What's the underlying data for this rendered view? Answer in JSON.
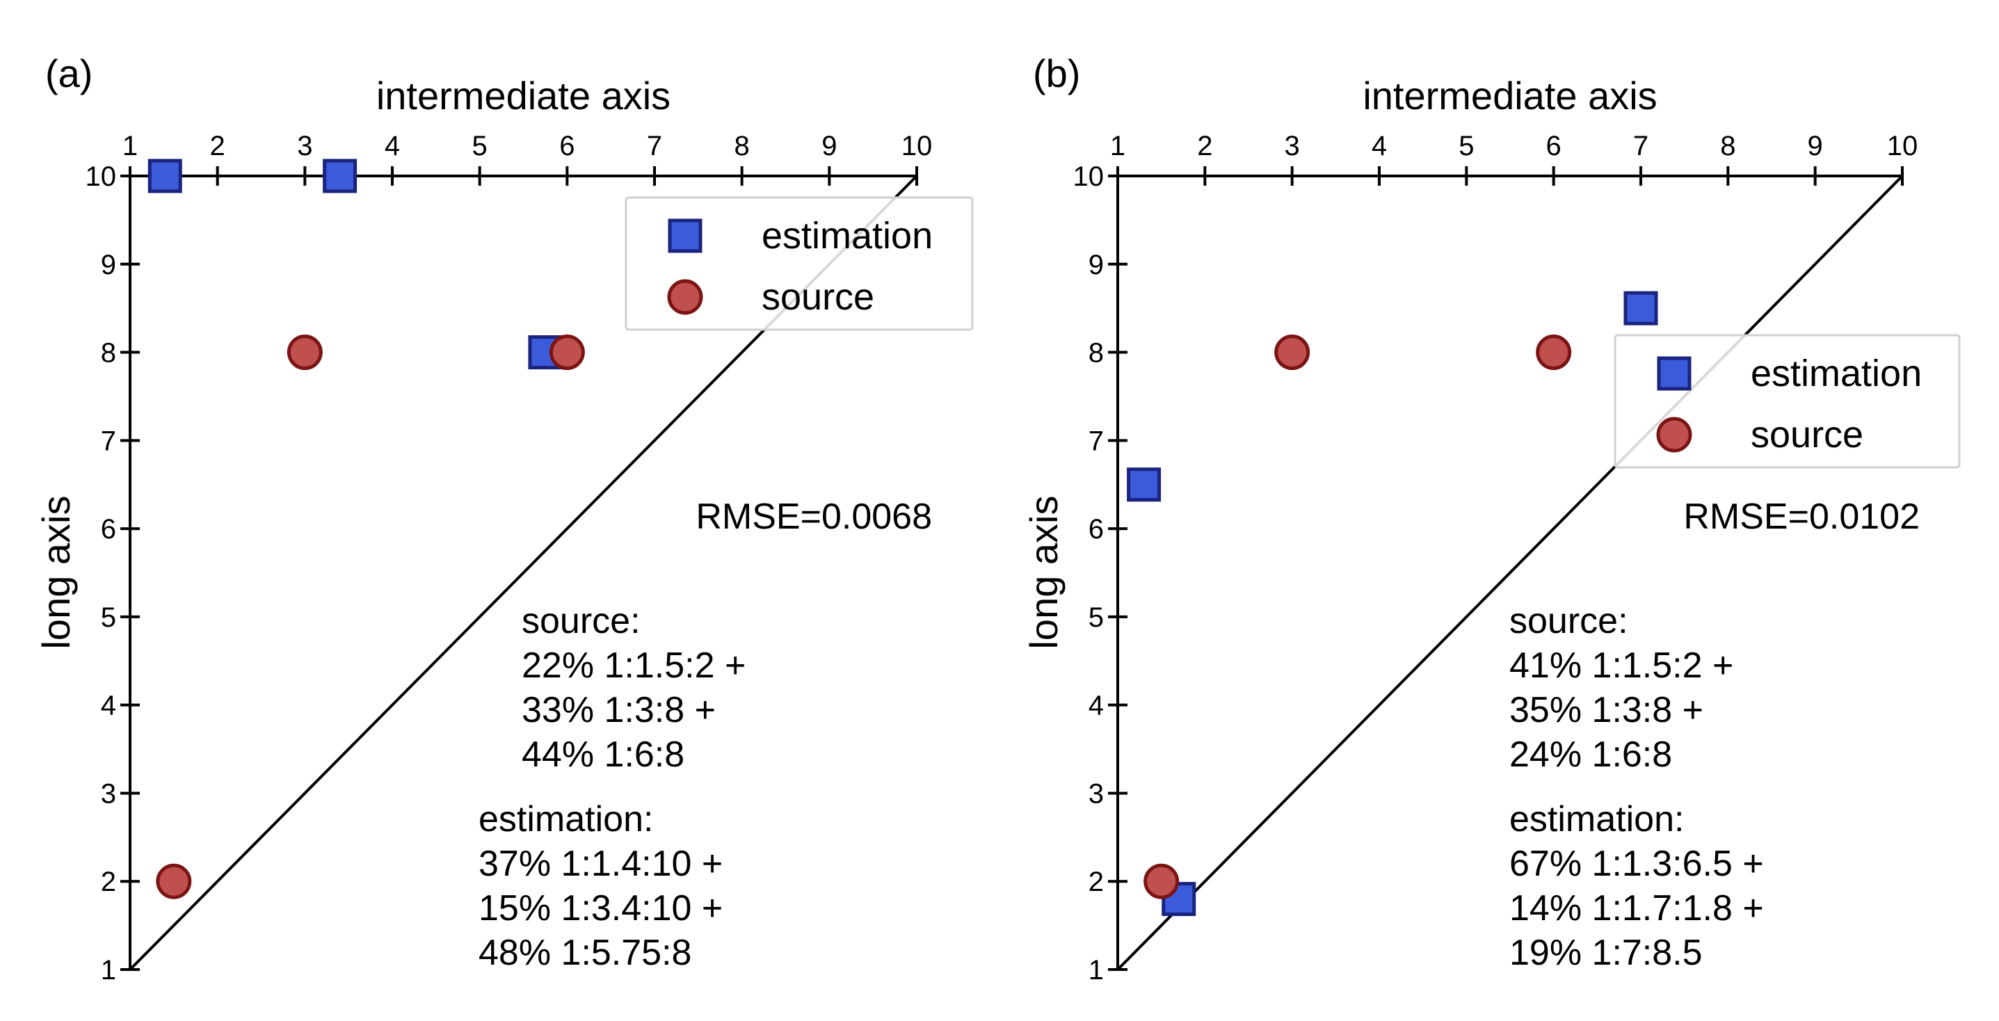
{
  "chart_data": [
    {
      "type": "scatter",
      "panel_label": "(a)",
      "xlabel": "intermediate axis",
      "ylabel": "long axis",
      "xlim": [
        1,
        10
      ],
      "ylim": [
        1,
        10
      ],
      "xticks": [
        "1",
        "2",
        "3",
        "4",
        "5",
        "6",
        "7",
        "8",
        "9",
        "10"
      ],
      "yticks": [
        "1",
        "2",
        "3",
        "4",
        "5",
        "6",
        "7",
        "8",
        "9",
        "10"
      ],
      "diagonal": true,
      "legend": {
        "position": "top-right",
        "items": [
          {
            "name": "estimation",
            "marker": "square",
            "color": "#3b5bdb"
          },
          {
            "name": "source",
            "marker": "circle",
            "color": "#c0504d"
          }
        ]
      },
      "series": [
        {
          "name": "estimation",
          "x": [
            1.4,
            3.4,
            5.75
          ],
          "y": [
            10,
            10,
            8
          ]
        },
        {
          "name": "source",
          "x": [
            1.5,
            3,
            6
          ],
          "y": [
            2,
            8,
            8
          ]
        }
      ],
      "rmse": "RMSE=0.0068",
      "source_text": [
        "source:",
        "22% 1:1.5:2 +",
        "33% 1:3:8 +",
        "44% 1:6:8"
      ],
      "estimation_text": [
        "estimation:",
        "37% 1:1.4:10 +",
        "15% 1:3.4:10 +",
        "48% 1:5.75:8"
      ]
    },
    {
      "type": "scatter",
      "panel_label": "(b)",
      "xlabel": "intermediate axis",
      "ylabel": "long axis",
      "xlim": [
        1,
        10
      ],
      "ylim": [
        1,
        10
      ],
      "xticks": [
        "1",
        "2",
        "3",
        "4",
        "5",
        "6",
        "7",
        "8",
        "9",
        "10"
      ],
      "yticks": [
        "1",
        "2",
        "3",
        "4",
        "5",
        "6",
        "7",
        "8",
        "9",
        "10"
      ],
      "diagonal": true,
      "legend": {
        "position": "right",
        "items": [
          {
            "name": "estimation",
            "marker": "square",
            "color": "#3b5bdb"
          },
          {
            "name": "source",
            "marker": "circle",
            "color": "#c0504d"
          }
        ]
      },
      "series": [
        {
          "name": "estimation",
          "x": [
            1.3,
            1.7,
            7
          ],
          "y": [
            6.5,
            1.8,
            8.5
          ]
        },
        {
          "name": "source",
          "x": [
            1.5,
            3,
            6
          ],
          "y": [
            2,
            8,
            8
          ]
        }
      ],
      "rmse": "RMSE=0.0102",
      "source_text": [
        "source:",
        "41% 1:1.5:2 +",
        "35% 1:3:8 +",
        "24% 1:6:8"
      ],
      "estimation_text": [
        "estimation:",
        "67% 1:1.3:6.5 +",
        "14% 1:1.7:1.8 +",
        "19% 1:7:8.5"
      ]
    }
  ]
}
